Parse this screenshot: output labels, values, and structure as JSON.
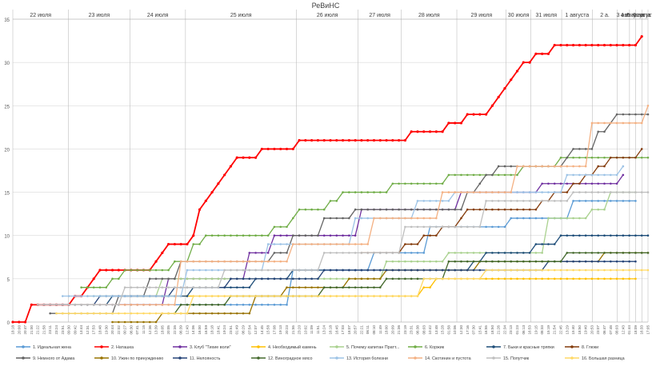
{
  "chart_data": {
    "type": "line",
    "title": "РеВиНС",
    "ylim": [
      0,
      35
    ],
    "yticks": [
      0,
      5,
      10,
      15,
      20,
      25,
      30,
      35
    ],
    "grid": true,
    "legend_position": "bottom",
    "date_groups": [
      "22 июля",
      "23 июля",
      "24 июля",
      "25 июля",
      "26 июля",
      "27 июля",
      "28 июля",
      "29 июля",
      "30 июля",
      "31 июля",
      "1 августа",
      "2 а.",
      "3 авг.",
      "4 августа",
      "5 августа",
      "6 августа"
    ],
    "x_tick_labels": [
      "18:18",
      "20:00",
      "20:47",
      "21:00",
      "21:22",
      "21:58",
      "23:11",
      "23:24",
      "23:51",
      "09:30",
      "09:42",
      "13:44",
      "12:31",
      "17:53",
      "18:48",
      "19:30",
      "20:44",
      "22:02",
      "00:27",
      "06:30",
      "07:41",
      "11:15",
      "12:36",
      "13:39",
      "18:05",
      "20:05",
      "22:35",
      "06:39",
      "12:43",
      "14:06",
      "16:00",
      "16:59",
      "18:18",
      "18:41",
      "19:24",
      "23:51",
      "01:49",
      "06:29",
      "07:54",
      "12:07",
      "14:45",
      "15:58",
      "17:08",
      "19:13",
      "20:23",
      "21:55",
      "23:20",
      "10:02",
      "11:09",
      "11:51",
      "13:24",
      "16:18",
      "16:45",
      "17:03",
      "18:07",
      "20:57",
      "22:21",
      "06:11",
      "08:10",
      "11:49",
      "18:00",
      "20:09",
      "21:36",
      "23:19",
      "23:31",
      "06:38",
      "08:03",
      "10:42",
      "13:48",
      "15:28",
      "01:58",
      "10:06",
      "12:30",
      "17:16",
      "07:30",
      "15:41",
      "16:55",
      "18:50",
      "21:26",
      "22:34",
      "23:13",
      "01:23",
      "06:13",
      "16:53",
      "19:15",
      "08:33",
      "15:19",
      "21:54",
      "22:45",
      "13:29",
      "15:40",
      "18:50",
      "19:40",
      "20:53",
      "23:07",
      "06:47",
      "07:48",
      "08:03",
      "12:43",
      "01:44",
      "18:09",
      "16:33",
      "17:05"
    ],
    "points_count": 103,
    "series": [
      {
        "name": "1. Идеальная жена",
        "color": "#5b9bd5",
        "steps": [
          [
            17,
            2
          ],
          [
            45,
            6
          ],
          [
            58,
            8
          ],
          [
            67,
            11
          ],
          [
            80,
            12
          ],
          [
            90,
            14
          ],
          [
            100,
            14
          ]
        ]
      },
      {
        "name": "2. Наташка",
        "color": "#ff0000",
        "steps": [
          [
            0,
            0
          ],
          [
            3,
            2
          ],
          [
            7,
            2
          ],
          [
            10,
            3
          ],
          [
            12,
            4
          ],
          [
            13,
            5
          ],
          [
            14,
            6
          ],
          [
            23,
            7
          ],
          [
            24,
            8
          ],
          [
            25,
            9
          ],
          [
            29,
            10
          ],
          [
            30,
            13
          ],
          [
            31,
            14
          ],
          [
            32,
            15
          ],
          [
            33,
            16
          ],
          [
            34,
            17
          ],
          [
            35,
            18
          ],
          [
            36,
            19
          ],
          [
            40,
            20
          ],
          [
            46,
            21
          ],
          [
            64,
            22
          ],
          [
            70,
            23
          ],
          [
            73,
            24
          ],
          [
            77,
            25
          ],
          [
            78,
            26
          ],
          [
            79,
            27
          ],
          [
            80,
            28
          ],
          [
            81,
            29
          ],
          [
            82,
            30
          ],
          [
            84,
            31
          ],
          [
            87,
            32
          ],
          [
            101,
            33
          ]
        ]
      },
      {
        "name": "3. Клуб \"Тихие воли\"",
        "color": "#7030a0",
        "steps": [
          [
            9,
            2
          ],
          [
            25,
            5
          ],
          [
            38,
            8
          ],
          [
            42,
            10
          ],
          [
            56,
            13
          ],
          [
            72,
            15
          ],
          [
            85,
            16
          ],
          [
            98,
            17
          ]
        ]
      },
      {
        "name": "4. Необходимый камень",
        "color": "#ffc000",
        "steps": [
          [
            20,
            3
          ],
          [
            35,
            3
          ],
          [
            60,
            3
          ],
          [
            66,
            4
          ],
          [
            68,
            5
          ],
          [
            100,
            5
          ]
        ]
      },
      {
        "name": "5. Почему капитан Пратт...",
        "color": "#a9d18e",
        "steps": [
          [
            12,
            3
          ],
          [
            24,
            5
          ],
          [
            60,
            7
          ],
          [
            70,
            8
          ],
          [
            86,
            12
          ],
          [
            93,
            13
          ],
          [
            96,
            15
          ],
          [
            100,
            15
          ]
        ]
      },
      {
        "name": "6. Коржик",
        "color": "#70ad47",
        "steps": [
          [
            11,
            4
          ],
          [
            16,
            5
          ],
          [
            18,
            6
          ],
          [
            26,
            7
          ],
          [
            29,
            9
          ],
          [
            31,
            10
          ],
          [
            42,
            11
          ],
          [
            45,
            12
          ],
          [
            46,
            13
          ],
          [
            51,
            14
          ],
          [
            53,
            15
          ],
          [
            61,
            16
          ],
          [
            70,
            17
          ],
          [
            82,
            18
          ],
          [
            88,
            19
          ],
          [
            102,
            19
          ]
        ]
      },
      {
        "name": "7. Быки и красные тряпки",
        "color": "#1f4e79",
        "steps": [
          [
            8,
            2
          ],
          [
            16,
            3
          ],
          [
            29,
            4
          ],
          [
            39,
            5
          ],
          [
            45,
            6
          ],
          [
            58,
            6
          ],
          [
            63,
            6
          ],
          [
            74,
            7
          ],
          [
            76,
            8
          ],
          [
            84,
            9
          ],
          [
            88,
            10
          ],
          [
            102,
            10
          ]
        ]
      },
      {
        "name": "8. Глюки",
        "color": "#843c0c",
        "steps": [
          [
            56,
            8
          ],
          [
            63,
            9
          ],
          [
            66,
            10
          ],
          [
            69,
            11
          ],
          [
            72,
            12
          ],
          [
            73,
            13
          ],
          [
            85,
            14
          ],
          [
            87,
            15
          ],
          [
            90,
            16
          ],
          [
            92,
            17
          ],
          [
            94,
            18
          ],
          [
            96,
            19
          ],
          [
            101,
            20
          ]
        ]
      },
      {
        "name": "9. Немного от Адама",
        "color": "#636363",
        "steps": [
          [
            6,
            1
          ],
          [
            17,
            3
          ],
          [
            22,
            5
          ],
          [
            27,
            7
          ],
          [
            42,
            8
          ],
          [
            45,
            10
          ],
          [
            50,
            12
          ],
          [
            55,
            13
          ],
          [
            73,
            15
          ],
          [
            75,
            16
          ],
          [
            76,
            17
          ],
          [
            78,
            18
          ],
          [
            89,
            19
          ],
          [
            90,
            20
          ],
          [
            94,
            22
          ],
          [
            96,
            23
          ],
          [
            97,
            24
          ],
          [
            102,
            24
          ]
        ]
      },
      {
        "name": "10. Ужин по принуждению",
        "color": "#997300",
        "steps": [
          [
            16,
            0
          ],
          [
            24,
            1
          ],
          [
            39,
            3
          ],
          [
            44,
            4
          ],
          [
            54,
            5
          ],
          [
            60,
            6
          ],
          [
            75,
            7
          ],
          [
            92,
            7
          ],
          [
            95,
            8
          ],
          [
            102,
            8
          ]
        ]
      },
      {
        "name": "11. Нелояность",
        "color": "#264478",
        "steps": [
          [
            5,
            2
          ],
          [
            14,
            3
          ],
          [
            26,
            4
          ],
          [
            33,
            4
          ],
          [
            35,
            5
          ],
          [
            50,
            6
          ],
          [
            77,
            6
          ],
          [
            86,
            7
          ],
          [
            100,
            7
          ]
        ]
      },
      {
        "name": "12. Виноградное мясо",
        "color": "#43682b",
        "steps": [
          [
            25,
            1
          ],
          [
            27,
            2
          ],
          [
            35,
            3
          ],
          [
            50,
            4
          ],
          [
            60,
            5
          ],
          [
            70,
            7
          ],
          [
            89,
            8
          ],
          [
            102,
            8
          ]
        ]
      },
      {
        "name": "13. История болезни",
        "color": "#9dc3e6",
        "steps": [
          [
            8,
            3
          ],
          [
            28,
            6
          ],
          [
            41,
            9
          ],
          [
            55,
            12
          ],
          [
            65,
            14
          ],
          [
            71,
            15
          ],
          [
            89,
            17
          ],
          [
            98,
            18
          ]
        ]
      },
      {
        "name": "14. Скотинин и пустота",
        "color": "#f4b183",
        "steps": [
          [
            9,
            2
          ],
          [
            27,
            7
          ],
          [
            45,
            9
          ],
          [
            58,
            12
          ],
          [
            69,
            15
          ],
          [
            81,
            18
          ],
          [
            93,
            23
          ],
          [
            102,
            25
          ]
        ]
      },
      {
        "name": "15. Попутчик",
        "color": "#bfbfbf",
        "steps": [
          [
            4,
            2
          ],
          [
            18,
            4
          ],
          [
            34,
            6
          ],
          [
            50,
            8
          ],
          [
            63,
            11
          ],
          [
            76,
            14
          ],
          [
            90,
            15
          ],
          [
            102,
            15
          ]
        ]
      },
      {
        "name": "16. Большая разница",
        "color": "#ffd966",
        "steps": [
          [
            7,
            1
          ],
          [
            29,
            3
          ],
          [
            56,
            3
          ],
          [
            66,
            5
          ],
          [
            76,
            6
          ],
          [
            102,
            6
          ]
        ]
      }
    ]
  }
}
